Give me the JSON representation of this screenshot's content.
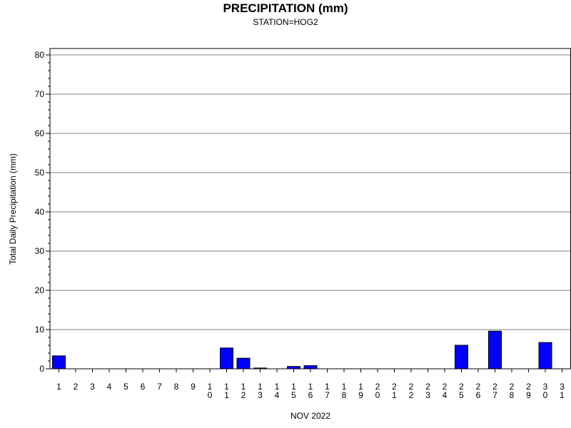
{
  "chart_data": {
    "type": "bar",
    "title": "PRECIPITATION (mm)",
    "subtitle": "STATION=HOG2",
    "xlabel": "NOV 2022",
    "ylabel": "Total Daily Precipitation (mm)",
    "ylim": [
      0,
      80
    ],
    "yticks": [
      0,
      10,
      20,
      30,
      40,
      50,
      60,
      70,
      80
    ],
    "grid": true,
    "categories": [
      "1",
      "2",
      "3",
      "4",
      "5",
      "6",
      "7",
      "8",
      "9",
      "10",
      "11",
      "12",
      "13",
      "14",
      "15",
      "16",
      "17",
      "18",
      "19",
      "20",
      "21",
      "22",
      "23",
      "24",
      "25",
      "26",
      "27",
      "28",
      "29",
      "30",
      "31"
    ],
    "values": [
      3.3,
      0,
      0,
      0,
      0,
      0,
      0,
      0,
      0,
      0,
      5.3,
      2.7,
      0.2,
      0,
      0.6,
      0.8,
      0,
      0,
      0,
      0,
      0,
      0,
      0,
      0,
      6.0,
      0,
      9.6,
      0,
      0,
      6.7,
      0
    ],
    "bar_color": "#0000ff",
    "bar_edge_color": "#000000"
  }
}
